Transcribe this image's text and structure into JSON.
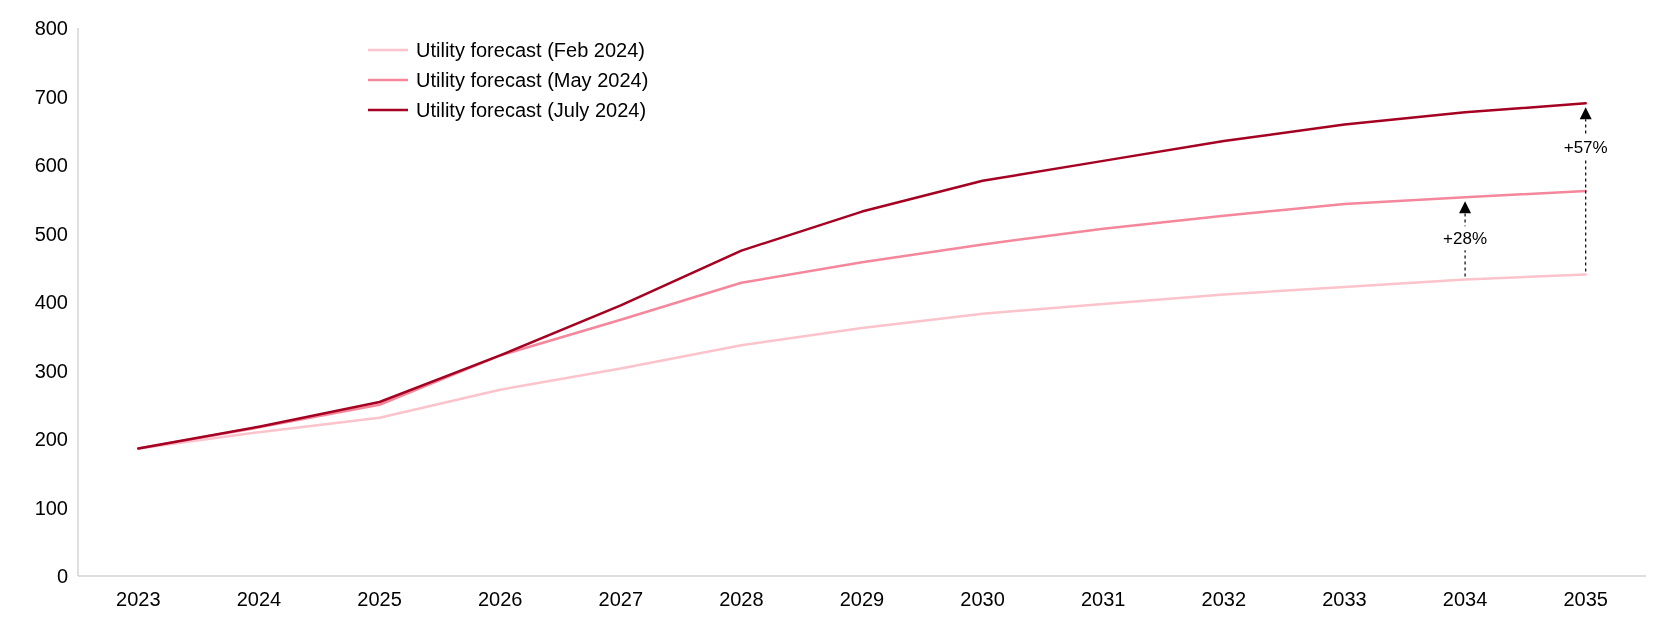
{
  "chart_data": {
    "type": "line",
    "categories": [
      "2023",
      "2024",
      "2025",
      "2026",
      "2027",
      "2028",
      "2029",
      "2030",
      "2031",
      "2032",
      "2033",
      "2034",
      "2035"
    ],
    "series": [
      {
        "name": "Utility forecast (Feb 2024)",
        "color": "#fbc3cb",
        "values": [
          186,
          210,
          231,
          272,
          303,
          337,
          362,
          383,
          397,
          411,
          422,
          433,
          440
        ]
      },
      {
        "name": "Utility forecast (May 2024)",
        "color": "#f4879b",
        "values": [
          186,
          217,
          250,
          322,
          374,
          428,
          458,
          484,
          507,
          526,
          543,
          553,
          562
        ]
      },
      {
        "name": "Utility forecast (July 2024)",
        "color": "#a50021",
        "values": [
          186,
          218,
          254,
          322,
          395,
          475,
          532,
          577,
          606,
          635,
          659,
          677,
          690
        ]
      }
    ],
    "ylim": [
      0,
      800
    ],
    "yticks": [
      0,
      100,
      200,
      300,
      400,
      500,
      600,
      700,
      800
    ],
    "grid": false,
    "legend": "top left",
    "marker": "none",
    "line_style": "solid",
    "annotations": [
      {
        "text": "+28%",
        "x": "2034",
        "y": 553
      },
      {
        "text": "+57%",
        "x": "2035",
        "y": 690
      }
    ]
  }
}
